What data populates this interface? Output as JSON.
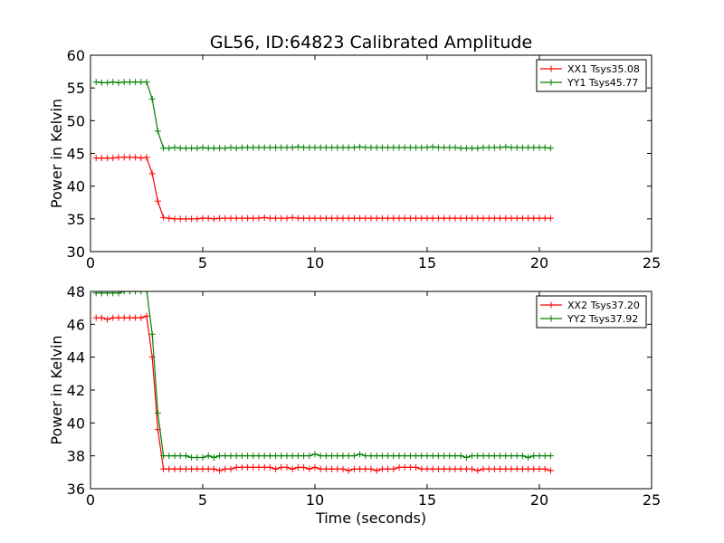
{
  "title": "GL56, ID:64823 Calibrated Amplitude",
  "xlabel": "Time (seconds)",
  "colors": {
    "XX": "#ff0000",
    "YY": "#008000"
  },
  "chart_data": [
    {
      "type": "line",
      "ylabel": "Power in Kelvin",
      "xlim": [
        0,
        25
      ],
      "ylim": [
        30,
        60
      ],
      "xticks": [
        "0",
        "5",
        "10",
        "15",
        "20",
        "25"
      ],
      "yticks": [
        "30",
        "35",
        "40",
        "45",
        "50",
        "55",
        "60"
      ],
      "legend_position": "top-right",
      "series": [
        {
          "name": "XX1 Tsys35.08",
          "color": "#ff0000",
          "x": [
            0.25,
            0.5,
            0.75,
            1.0,
            1.25,
            1.5,
            1.75,
            2.0,
            2.25,
            2.5,
            2.75,
            3.0,
            3.25,
            3.5,
            3.75,
            4.0,
            4.25,
            4.5,
            4.75,
            5.0,
            5.25,
            5.5,
            5.75,
            6.0,
            6.25,
            6.5,
            6.75,
            7.0,
            7.25,
            7.5,
            7.75,
            8.0,
            8.25,
            8.5,
            8.75,
            9.0,
            9.25,
            9.5,
            9.75,
            10.0,
            10.25,
            10.5,
            10.75,
            11.0,
            11.25,
            11.5,
            11.75,
            12.0,
            12.25,
            12.5,
            12.75,
            13.0,
            13.25,
            13.5,
            13.75,
            14.0,
            14.25,
            14.5,
            14.75,
            15.0,
            15.25,
            15.5,
            15.75,
            16.0,
            16.25,
            16.5,
            16.75,
            17.0,
            17.25,
            17.5,
            17.75,
            18.0,
            18.25,
            18.5,
            18.75,
            19.0,
            19.25,
            19.5,
            19.75,
            20.0,
            20.25,
            20.5
          ],
          "y": [
            44.3,
            44.3,
            44.3,
            44.3,
            44.4,
            44.4,
            44.4,
            44.4,
            44.3,
            44.4,
            41.9,
            37.7,
            35.2,
            35.1,
            35.0,
            35.0,
            35.0,
            35.0,
            35.0,
            35.1,
            35.1,
            35.0,
            35.1,
            35.1,
            35.1,
            35.1,
            35.1,
            35.1,
            35.1,
            35.1,
            35.2,
            35.1,
            35.1,
            35.1,
            35.1,
            35.2,
            35.1,
            35.1,
            35.1,
            35.1,
            35.1,
            35.1,
            35.1,
            35.1,
            35.1,
            35.1,
            35.1,
            35.1,
            35.1,
            35.1,
            35.1,
            35.1,
            35.1,
            35.1,
            35.1,
            35.1,
            35.1,
            35.1,
            35.1,
            35.1,
            35.1,
            35.1,
            35.1,
            35.1,
            35.1,
            35.1,
            35.1,
            35.1,
            35.1,
            35.1,
            35.1,
            35.1,
            35.1,
            35.1,
            35.1,
            35.1,
            35.1,
            35.1,
            35.1,
            35.1,
            35.1,
            35.1
          ]
        },
        {
          "name": "YY1 Tsys45.77",
          "color": "#008000",
          "x": [
            0.25,
            0.5,
            0.75,
            1.0,
            1.25,
            1.5,
            1.75,
            2.0,
            2.25,
            2.5,
            2.75,
            3.0,
            3.25,
            3.5,
            3.75,
            4.0,
            4.25,
            4.5,
            4.75,
            5.0,
            5.25,
            5.5,
            5.75,
            6.0,
            6.25,
            6.5,
            6.75,
            7.0,
            7.25,
            7.5,
            7.75,
            8.0,
            8.25,
            8.5,
            8.75,
            9.0,
            9.25,
            9.5,
            9.75,
            10.0,
            10.25,
            10.5,
            10.75,
            11.0,
            11.25,
            11.5,
            11.75,
            12.0,
            12.25,
            12.5,
            12.75,
            13.0,
            13.25,
            13.5,
            13.75,
            14.0,
            14.25,
            14.5,
            14.75,
            15.0,
            15.25,
            15.5,
            15.75,
            16.0,
            16.25,
            16.5,
            16.75,
            17.0,
            17.25,
            17.5,
            17.75,
            18.0,
            18.25,
            18.5,
            18.75,
            19.0,
            19.25,
            19.5,
            19.75,
            20.0,
            20.25,
            20.5
          ],
          "y": [
            55.9,
            55.8,
            55.8,
            55.9,
            55.8,
            55.9,
            55.9,
            55.9,
            55.9,
            55.9,
            53.3,
            48.4,
            45.8,
            45.8,
            45.9,
            45.8,
            45.8,
            45.8,
            45.8,
            45.9,
            45.8,
            45.8,
            45.8,
            45.8,
            45.9,
            45.8,
            45.9,
            45.9,
            45.9,
            45.9,
            45.9,
            45.9,
            45.9,
            45.9,
            45.9,
            45.9,
            46.0,
            45.9,
            45.9,
            45.9,
            45.9,
            45.9,
            45.9,
            45.9,
            45.9,
            45.9,
            45.9,
            46.0,
            45.9,
            45.9,
            45.9,
            45.9,
            45.9,
            45.9,
            45.9,
            45.9,
            45.9,
            45.9,
            45.9,
            45.9,
            46.0,
            45.9,
            45.9,
            45.9,
            45.9,
            45.8,
            45.8,
            45.8,
            45.8,
            45.9,
            45.9,
            45.9,
            45.9,
            46.0,
            45.9,
            45.9,
            45.9,
            45.9,
            45.9,
            45.9,
            45.9,
            45.8
          ]
        }
      ]
    },
    {
      "type": "line",
      "ylabel": "Power in Kelvin",
      "xlabel": "Time (seconds)",
      "xlim": [
        0,
        25
      ],
      "ylim": [
        36,
        48
      ],
      "xticks": [
        "0",
        "5",
        "10",
        "15",
        "20",
        "25"
      ],
      "yticks": [
        "36",
        "38",
        "40",
        "42",
        "44",
        "46",
        "48"
      ],
      "legend_position": "top-right",
      "series": [
        {
          "name": "XX2 Tsys37.20",
          "color": "#ff0000",
          "x": [
            0.25,
            0.5,
            0.75,
            1.0,
            1.25,
            1.5,
            1.75,
            2.0,
            2.25,
            2.5,
            2.75,
            3.0,
            3.25,
            3.5,
            3.75,
            4.0,
            4.25,
            4.5,
            4.75,
            5.0,
            5.25,
            5.5,
            5.75,
            6.0,
            6.25,
            6.5,
            6.75,
            7.0,
            7.25,
            7.5,
            7.75,
            8.0,
            8.25,
            8.5,
            8.75,
            9.0,
            9.25,
            9.5,
            9.75,
            10.0,
            10.25,
            10.5,
            10.75,
            11.0,
            11.25,
            11.5,
            11.75,
            12.0,
            12.25,
            12.5,
            12.75,
            13.0,
            13.25,
            13.5,
            13.75,
            14.0,
            14.25,
            14.5,
            14.75,
            15.0,
            15.25,
            15.5,
            15.75,
            16.0,
            16.25,
            16.5,
            16.75,
            17.0,
            17.25,
            17.5,
            17.75,
            18.0,
            18.25,
            18.5,
            18.75,
            19.0,
            19.25,
            19.5,
            19.75,
            20.0,
            20.25,
            20.5
          ],
          "y": [
            46.4,
            46.4,
            46.3,
            46.4,
            46.4,
            46.4,
            46.4,
            46.4,
            46.4,
            46.5,
            44.0,
            39.6,
            37.2,
            37.2,
            37.2,
            37.2,
            37.2,
            37.2,
            37.2,
            37.2,
            37.2,
            37.2,
            37.1,
            37.2,
            37.2,
            37.3,
            37.3,
            37.3,
            37.3,
            37.3,
            37.3,
            37.3,
            37.2,
            37.3,
            37.3,
            37.2,
            37.3,
            37.3,
            37.2,
            37.3,
            37.2,
            37.2,
            37.2,
            37.2,
            37.2,
            37.1,
            37.2,
            37.2,
            37.2,
            37.2,
            37.1,
            37.2,
            37.2,
            37.2,
            37.3,
            37.3,
            37.3,
            37.3,
            37.2,
            37.2,
            37.2,
            37.2,
            37.2,
            37.2,
            37.2,
            37.2,
            37.2,
            37.2,
            37.1,
            37.2,
            37.2,
            37.2,
            37.2,
            37.2,
            37.2,
            37.2,
            37.2,
            37.2,
            37.2,
            37.2,
            37.2,
            37.1
          ]
        },
        {
          "name": "YY2 Tsys37.92",
          "color": "#008000",
          "x": [
            0.25,
            0.5,
            0.75,
            1.0,
            1.25,
            1.5,
            1.75,
            2.0,
            2.25,
            2.5,
            2.75,
            3.0,
            3.25,
            3.5,
            3.75,
            4.0,
            4.25,
            4.5,
            4.75,
            5.0,
            5.25,
            5.5,
            5.75,
            6.0,
            6.25,
            6.5,
            6.75,
            7.0,
            7.25,
            7.5,
            7.75,
            8.0,
            8.25,
            8.5,
            8.75,
            9.0,
            9.25,
            9.5,
            9.75,
            10.0,
            10.25,
            10.5,
            10.75,
            11.0,
            11.25,
            11.5,
            11.75,
            12.0,
            12.25,
            12.5,
            12.75,
            13.0,
            13.25,
            13.5,
            13.75,
            14.0,
            14.25,
            14.5,
            14.75,
            15.0,
            15.25,
            15.5,
            15.75,
            16.0,
            16.25,
            16.5,
            16.75,
            17.0,
            17.25,
            17.5,
            17.75,
            18.0,
            18.25,
            18.5,
            18.75,
            19.0,
            19.25,
            19.5,
            19.75,
            20.0,
            20.25,
            20.5
          ],
          "y": [
            47.9,
            47.9,
            47.9,
            47.9,
            47.9,
            48.0,
            48.0,
            48.0,
            48.0,
            48.1,
            45.4,
            40.6,
            38.0,
            38.0,
            38.0,
            38.0,
            38.0,
            37.9,
            37.9,
            37.9,
            38.0,
            37.9,
            38.0,
            38.0,
            38.0,
            38.0,
            38.0,
            38.0,
            38.0,
            38.0,
            38.0,
            38.0,
            38.0,
            38.0,
            38.0,
            38.0,
            38.0,
            38.0,
            38.0,
            38.1,
            38.0,
            38.0,
            38.0,
            38.0,
            38.0,
            38.0,
            38.0,
            38.1,
            38.0,
            38.0,
            38.0,
            38.0,
            38.0,
            38.0,
            38.0,
            38.0,
            38.0,
            38.0,
            38.0,
            38.0,
            38.0,
            38.0,
            38.0,
            38.0,
            38.0,
            38.0,
            37.9,
            38.0,
            38.0,
            38.0,
            38.0,
            38.0,
            38.0,
            38.0,
            38.0,
            38.0,
            38.0,
            37.9,
            38.0,
            38.0,
            38.0,
            38.0
          ]
        }
      ]
    }
  ]
}
